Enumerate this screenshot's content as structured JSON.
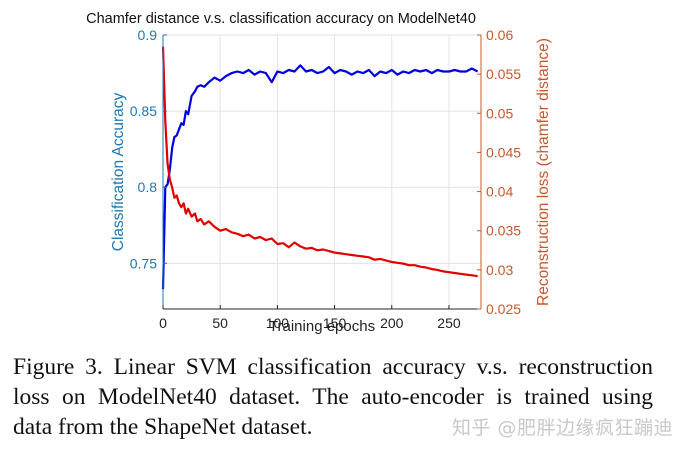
{
  "chart_data": {
    "type": "line",
    "title": "Chamfer distance v.s. classification accuracy on ModelNet40",
    "xlabel": "Training epochs",
    "ylabel_left": "Classification Accuracy",
    "ylabel_right": "Reconstruction loss (chamfer distance)",
    "xlim": [
      0,
      278
    ],
    "ylim_left": [
      0.72,
      0.9
    ],
    "ylim_right": [
      0.025,
      0.06
    ],
    "x_ticks": [
      0,
      50,
      100,
      150,
      200,
      250
    ],
    "x_tick_labels": [
      "0",
      "50",
      "100",
      "150",
      "200",
      "250"
    ],
    "y_left_ticks": [
      0.75,
      0.8,
      0.85,
      0.9
    ],
    "y_left_tick_labels": [
      "0.75",
      "0.8",
      "0.85",
      "0.9"
    ],
    "y_right_ticks": [
      0.025,
      0.03,
      0.035,
      0.04,
      0.045,
      0.05,
      0.055,
      0.06
    ],
    "y_right_tick_labels": [
      "0.025",
      "0.03",
      "0.035",
      "0.04",
      "0.045",
      "0.05",
      "0.055",
      "0.06"
    ],
    "grid": true,
    "legend": "none",
    "colors": {
      "accuracy_line": "#0000dd",
      "loss_line": "#e00000",
      "left_axis": "#1f77b4",
      "right_axis": "#c8582a",
      "grid": "#e3e3e3"
    },
    "series": [
      {
        "name": "Classification Accuracy",
        "axis": "left",
        "x": [
          0,
          2,
          4,
          6,
          8,
          10,
          12,
          14,
          16,
          18,
          20,
          22,
          25,
          28,
          30,
          33,
          36,
          40,
          45,
          50,
          55,
          60,
          65,
          70,
          75,
          80,
          85,
          90,
          95,
          100,
          105,
          110,
          115,
          120,
          125,
          130,
          135,
          140,
          145,
          150,
          155,
          160,
          165,
          170,
          175,
          180,
          185,
          190,
          195,
          200,
          205,
          210,
          215,
          220,
          225,
          230,
          235,
          240,
          245,
          250,
          255,
          260,
          265,
          270,
          275
        ],
        "values": [
          0.733,
          0.8,
          0.802,
          0.812,
          0.826,
          0.833,
          0.834,
          0.838,
          0.842,
          0.841,
          0.85,
          0.848,
          0.86,
          0.863,
          0.866,
          0.867,
          0.866,
          0.869,
          0.872,
          0.87,
          0.873,
          0.875,
          0.876,
          0.875,
          0.877,
          0.874,
          0.876,
          0.875,
          0.869,
          0.876,
          0.875,
          0.877,
          0.876,
          0.88,
          0.876,
          0.877,
          0.875,
          0.876,
          0.879,
          0.875,
          0.877,
          0.876,
          0.874,
          0.876,
          0.875,
          0.877,
          0.873,
          0.876,
          0.875,
          0.877,
          0.874,
          0.876,
          0.875,
          0.877,
          0.876,
          0.877,
          0.875,
          0.877,
          0.876,
          0.876,
          0.877,
          0.876,
          0.876,
          0.878,
          0.876
        ]
      },
      {
        "name": "Reconstruction loss (chamfer distance)",
        "axis": "right",
        "x": [
          0,
          2,
          4,
          6,
          8,
          10,
          12,
          14,
          16,
          18,
          20,
          22,
          25,
          28,
          30,
          33,
          36,
          40,
          45,
          50,
          55,
          60,
          65,
          70,
          75,
          80,
          85,
          90,
          95,
          100,
          105,
          110,
          115,
          120,
          125,
          130,
          135,
          140,
          145,
          150,
          155,
          160,
          165,
          170,
          175,
          180,
          185,
          190,
          195,
          200,
          205,
          210,
          215,
          220,
          225,
          230,
          235,
          240,
          245,
          250,
          255,
          260,
          265,
          270,
          275
        ],
        "values": [
          0.0585,
          0.049,
          0.0435,
          0.0415,
          0.0405,
          0.0392,
          0.0395,
          0.0385,
          0.038,
          0.0385,
          0.0372,
          0.0378,
          0.0368,
          0.0372,
          0.0362,
          0.0365,
          0.0358,
          0.0362,
          0.0355,
          0.035,
          0.0352,
          0.0348,
          0.0346,
          0.0343,
          0.0345,
          0.034,
          0.0342,
          0.0338,
          0.034,
          0.0333,
          0.0334,
          0.0329,
          0.0335,
          0.033,
          0.0327,
          0.0328,
          0.0325,
          0.0326,
          0.0324,
          0.0322,
          0.0321,
          0.032,
          0.0319,
          0.0318,
          0.0317,
          0.0316,
          0.0313,
          0.0314,
          0.0312,
          0.031,
          0.0309,
          0.0308,
          0.0306,
          0.0306,
          0.0304,
          0.0303,
          0.0301,
          0.03,
          0.0298,
          0.0297,
          0.0296,
          0.0295,
          0.0294,
          0.0293,
          0.0292
        ]
      }
    ]
  },
  "caption": {
    "lines": [
      "Figure 3. Linear SVM classification accuracy v.s.  reconstruction",
      "loss on ModelNet40 dataset.  The auto-encoder is trained using",
      "data from the ShapeNet dataset."
    ]
  },
  "watermark": "知乎 @肥胖边缘疯狂蹦迪"
}
